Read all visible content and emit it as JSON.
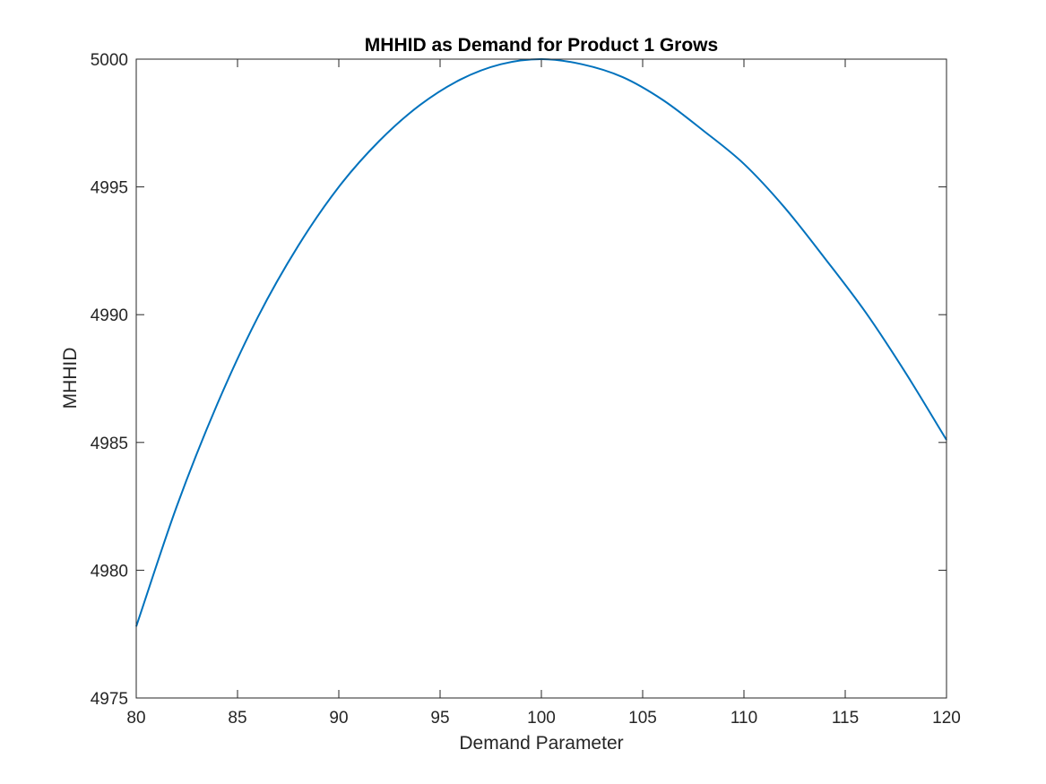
{
  "chart_data": {
    "type": "line",
    "title": "MHHID as Demand for Product 1 Grows",
    "xlabel": "Demand Parameter",
    "ylabel": "MHHID",
    "xlim": [
      80,
      120
    ],
    "ylim": [
      4975,
      5000
    ],
    "xticks": [
      80,
      85,
      90,
      95,
      100,
      105,
      110,
      115,
      120
    ],
    "yticks": [
      4975,
      4980,
      4985,
      4990,
      4995,
      5000
    ],
    "grid": false,
    "box": true,
    "series": [
      {
        "color": "#0072BD",
        "x": [
          80,
          82,
          84,
          86,
          88,
          90,
          92,
          94,
          96,
          98,
          100,
          102,
          104,
          106,
          108,
          110,
          112,
          114,
          116,
          118,
          120
        ],
        "y": [
          4977.8,
          4982.5,
          4986.5,
          4989.9,
          4992.7,
          4995.0,
          4996.8,
          4998.2,
          4999.2,
          4999.8,
          5000.0,
          4999.8,
          4999.3,
          4998.4,
          4997.2,
          4995.9,
          4994.2,
          4992.2,
          4990.1,
          4987.7,
          4985.1
        ]
      }
    ]
  }
}
